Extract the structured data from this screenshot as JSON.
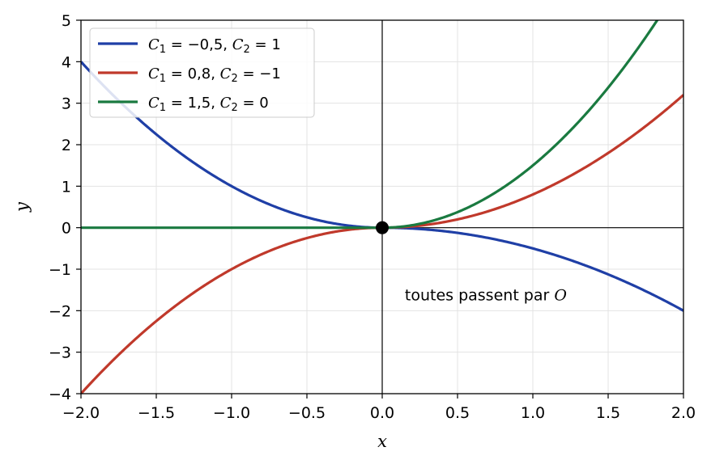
{
  "chart_data": {
    "type": "line",
    "xlabel": "x",
    "ylabel": "y",
    "xlim": [
      -2.0,
      2.0
    ],
    "ylim": [
      -4,
      5
    ],
    "xticks": [
      -2.0,
      -1.5,
      -1.0,
      -0.5,
      0.0,
      0.5,
      1.0,
      1.5,
      2.0
    ],
    "xtick_labels": [
      "−2.0",
      "−1.5",
      "−1.0",
      "−0.5",
      "0.0",
      "0.5",
      "1.0",
      "1.5",
      "2.0"
    ],
    "yticks": [
      -4,
      -3,
      -2,
      -1,
      0,
      1,
      2,
      3,
      4,
      5
    ],
    "ytick_labels": [
      "−4",
      "−3",
      "−2",
      "−1",
      "0",
      "1",
      "2",
      "3",
      "4",
      "5"
    ],
    "grid": true,
    "legend_position": "top-left",
    "series": [
      {
        "legend": [
          {
            "t": "C",
            "i": true
          },
          {
            "t": "1",
            "sub": true
          },
          {
            "t": " = −0,5, "
          },
          {
            "t": "C",
            "i": true
          },
          {
            "t": "2",
            "sub": true
          },
          {
            "t": " = 1"
          }
        ],
        "color": "#1f3fa6",
        "piecewise": {
          "neg_coef": 1,
          "neg_pow": 2,
          "pos_coef": -0.5,
          "pos_pow": 2
        },
        "x": [
          -2.0,
          -1.5,
          -1.0,
          -0.5,
          0.0,
          0.5,
          1.0,
          1.5,
          2.0
        ],
        "y": [
          4.0,
          2.25,
          1.0,
          0.25,
          0.0,
          -0.125,
          -0.5,
          -1.125,
          -2.0
        ]
      },
      {
        "legend": [
          {
            "t": "C",
            "i": true
          },
          {
            "t": "1",
            "sub": true
          },
          {
            "t": " = 0,8, "
          },
          {
            "t": "C",
            "i": true
          },
          {
            "t": "2",
            "sub": true
          },
          {
            "t": " = −1"
          }
        ],
        "color": "#c0392b",
        "piecewise": {
          "neg_coef": -1,
          "neg_pow": 2,
          "pos_coef": 0.8,
          "pos_pow": 2
        },
        "x": [
          -2.0,
          -1.5,
          -1.0,
          -0.5,
          0.0,
          0.5,
          1.0,
          1.5,
          2.0
        ],
        "y": [
          -4.0,
          -2.25,
          -1.0,
          -0.25,
          0.0,
          0.2,
          0.8,
          1.8,
          3.2
        ]
      },
      {
        "legend": [
          {
            "t": "C",
            "i": true
          },
          {
            "t": "1",
            "sub": true
          },
          {
            "t": " = 1,5, "
          },
          {
            "t": "C",
            "i": true
          },
          {
            "t": "2",
            "sub": true
          },
          {
            "t": " = 0"
          }
        ],
        "color": "#1a7a40",
        "piecewise": {
          "neg_coef": 0,
          "neg_pow": 2,
          "pos_coef": 1.5,
          "pos_pow": 2
        },
        "x": [
          -2.0,
          -1.5,
          -1.0,
          -0.5,
          0.0,
          0.5,
          1.0,
          1.5,
          2.0
        ],
        "y": [
          0.0,
          0.0,
          0.0,
          0.0,
          0.0,
          0.375,
          1.5,
          3.375,
          6.0
        ]
      }
    ],
    "origin_point": {
      "x": 0,
      "y": 0
    },
    "annotation": {
      "parts": [
        {
          "t": "toutes passent par "
        },
        {
          "t": "O",
          "i": true
        }
      ],
      "x": 0.15,
      "y": -1.75
    }
  }
}
